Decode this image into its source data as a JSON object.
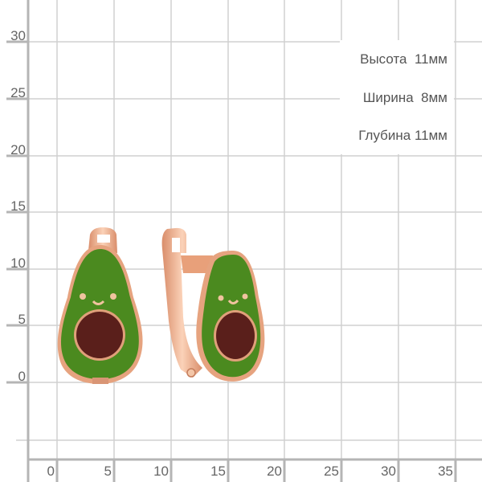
{
  "dimensions": {
    "height_label": "Высота",
    "height_value": "11мм",
    "width_label": "Ширина",
    "width_value": "8мм",
    "depth_label": "Глубина",
    "depth_value": "11мм"
  },
  "ruler": {
    "y_ticks": [
      "30",
      "25",
      "20",
      "15",
      "10",
      "5",
      "0"
    ],
    "x_ticks": [
      "0",
      "5",
      "10",
      "15",
      "20",
      "25",
      "30",
      "35"
    ]
  },
  "colors": {
    "grid": "#cfcfcf",
    "axis": "#b5b5b5",
    "enamel_green": "#4a8a1e",
    "pit_brown": "#5a1e1a",
    "gold": "#e8a884"
  }
}
